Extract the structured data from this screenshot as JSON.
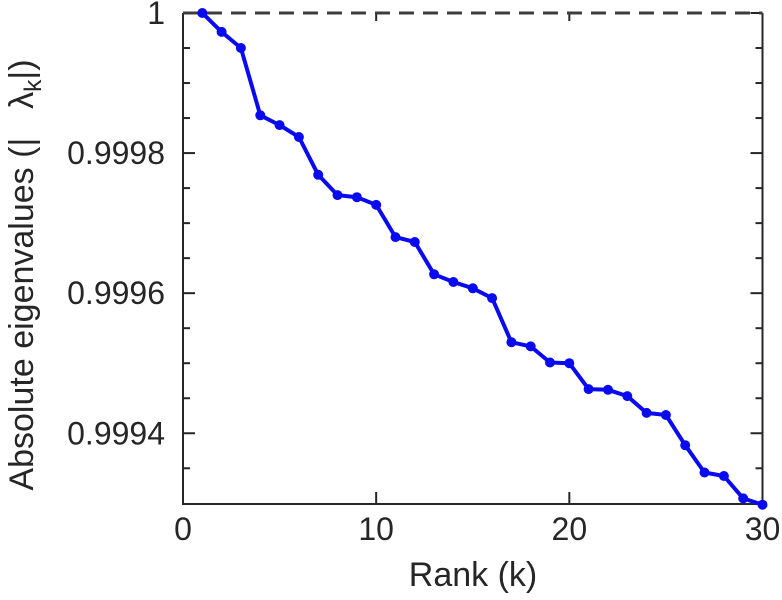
{
  "figure": {
    "background": "#ffffff",
    "axis_color": "#262626",
    "label_color": "#262626"
  },
  "chart_data": {
    "type": "line",
    "title": "",
    "xlabel": "Rank (k)",
    "ylabel": "Absolute eigenvalues (| λk|)",
    "ylabel_parts": {
      "prefix": "Absolute eigenvalues (|",
      "lambda": "λ",
      "lambda_sub": "k",
      "suffix": "|)"
    },
    "grid": false,
    "legend": null,
    "xlim": [
      0,
      30
    ],
    "ylim": [
      0.999299,
      1.0
    ],
    "xticks": {
      "values": [
        0,
        10,
        20,
        30
      ],
      "labels": [
        "0",
        "10",
        "20",
        "30"
      ]
    },
    "yticks": {
      "values": [
        1.0,
        0.9998,
        0.9996,
        0.9994
      ],
      "labels": [
        "1",
        "0.9998",
        "0.9996",
        "0.9994"
      ]
    },
    "y_minor_step": 5e-05,
    "reference_line": {
      "y": 1.0,
      "style": "dashed",
      "color": "#3d3d3d",
      "width": 3
    },
    "x": [
      1,
      2,
      3,
      4,
      5,
      6,
      7,
      8,
      9,
      10,
      11,
      12,
      13,
      14,
      15,
      16,
      17,
      18,
      19,
      20,
      21,
      22,
      23,
      24,
      25,
      26,
      27,
      28,
      29,
      30
    ],
    "series": [
      {
        "name": "absolute-eigenvalues",
        "color": "#0a0af0",
        "marker": "circle",
        "marker_size": 5,
        "line_width": 4,
        "values": [
          1.0,
          0.999973,
          0.99995,
          0.999854,
          0.99984,
          0.999823,
          0.999769,
          0.99974,
          0.999737,
          0.999726,
          0.99968,
          0.999673,
          0.999627,
          0.999616,
          0.999607,
          0.999593,
          0.99953,
          0.999524,
          0.999501,
          0.9995,
          0.999463,
          0.999462,
          0.999453,
          0.999429,
          0.999426,
          0.999383,
          0.999344,
          0.999339,
          0.999307,
          0.999298
        ]
      }
    ]
  }
}
